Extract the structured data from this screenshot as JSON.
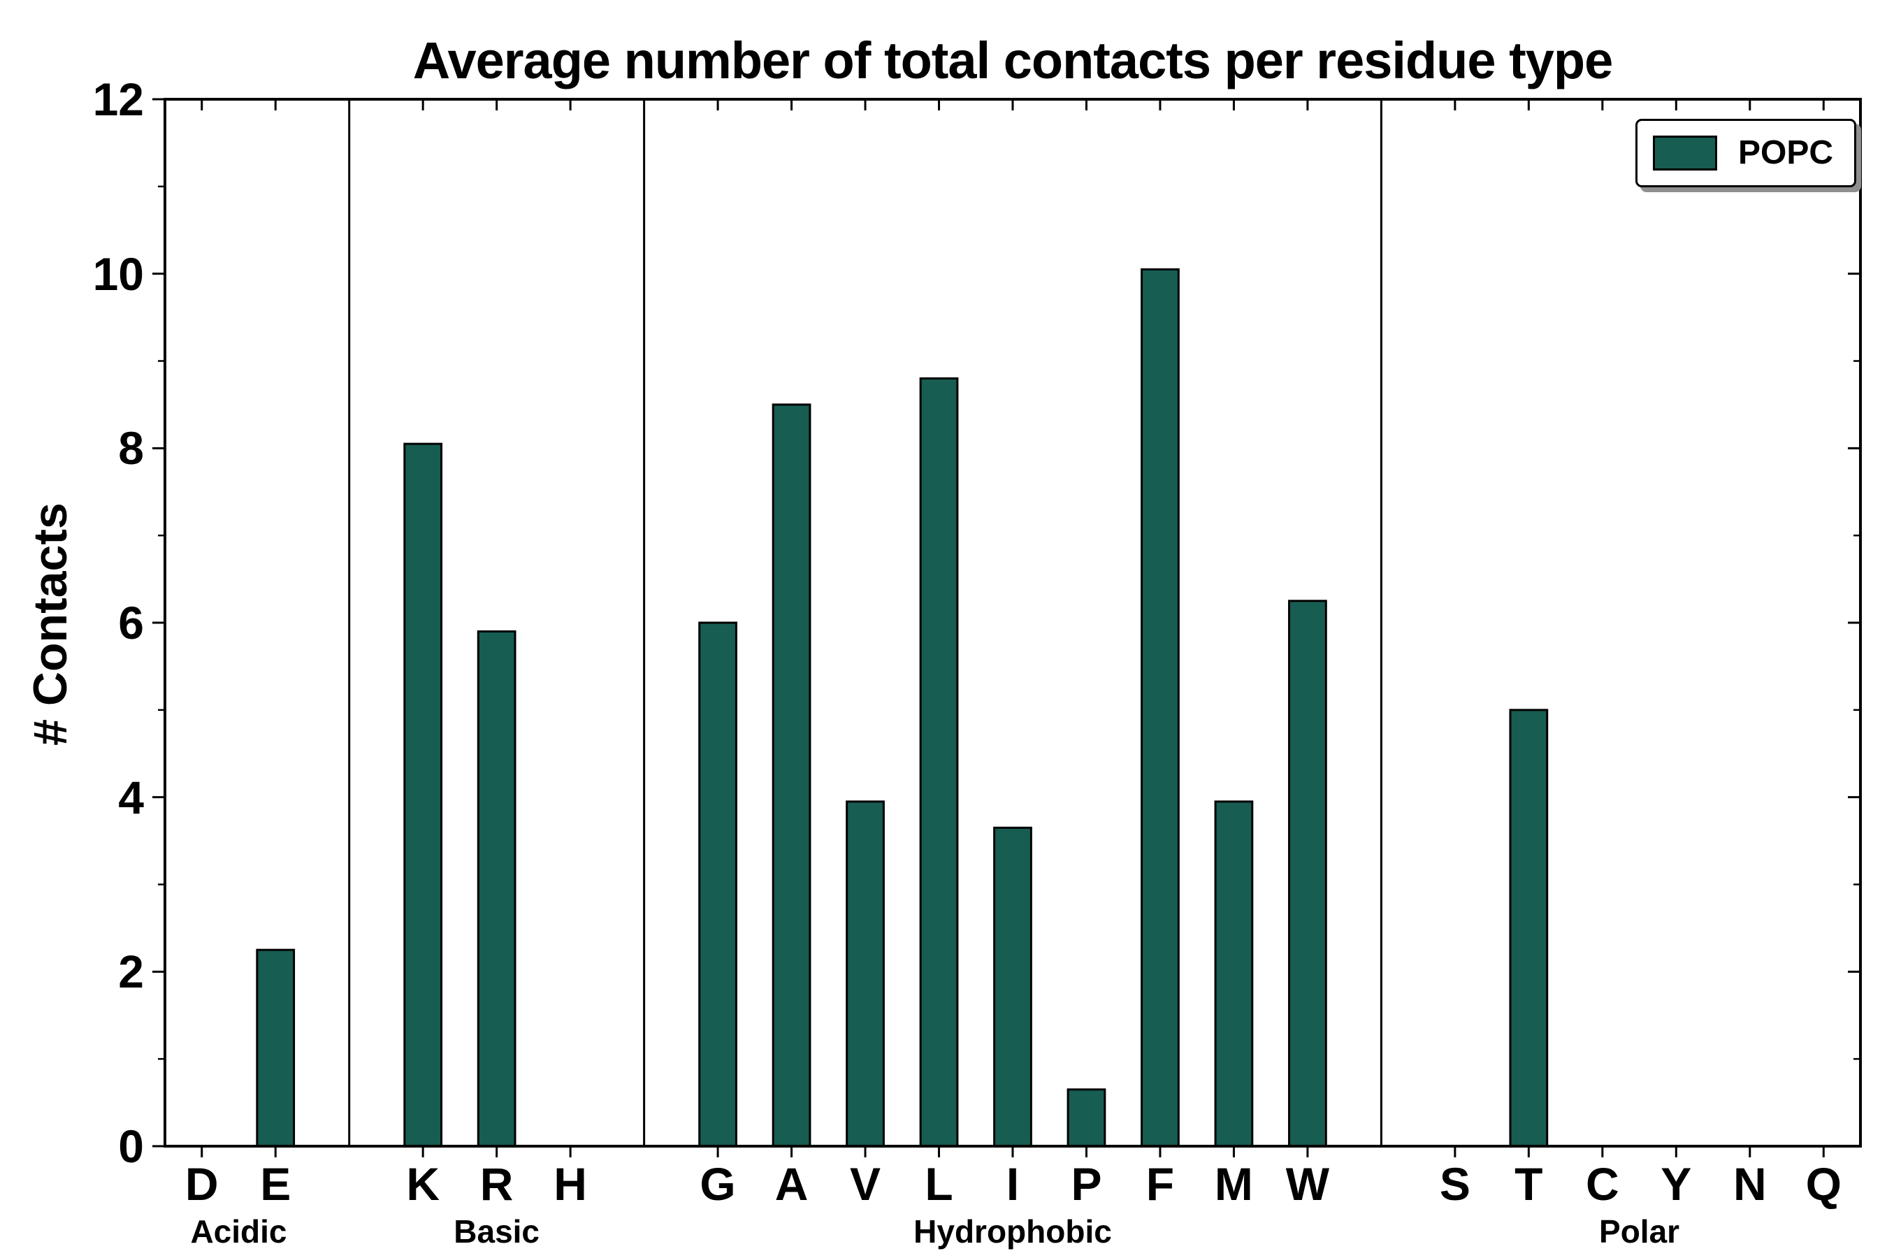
{
  "page": {
    "background": "#ffffff"
  },
  "chart_data": {
    "type": "bar",
    "title": "Average number of total contacts per residue type",
    "ylabel": "# Contacts",
    "xlabel": "",
    "ylim": [
      0,
      12
    ],
    "yticks": [
      0,
      2,
      4,
      6,
      8,
      10,
      12
    ],
    "grid": false,
    "bar_color": "#175D52",
    "bar_edge_color": "#000000",
    "legend": {
      "label": "POPC",
      "position": "upper right"
    },
    "groups": [
      {
        "label": "Acidic",
        "categories": [
          "D",
          "E"
        ],
        "values": [
          0.0,
          2.25
        ]
      },
      {
        "label": "Basic",
        "categories": [
          "K",
          "R",
          "H"
        ],
        "values": [
          8.05,
          5.9,
          0.0
        ]
      },
      {
        "label": "Hydrophobic",
        "categories": [
          "G",
          "A",
          "V",
          "L",
          "I",
          "P",
          "F",
          "M",
          "W"
        ],
        "values": [
          6.0,
          8.5,
          3.95,
          8.8,
          3.65,
          0.65,
          10.05,
          3.95,
          6.25
        ]
      },
      {
        "label": "Polar",
        "categories": [
          "S",
          "T",
          "C",
          "Y",
          "N",
          "Q"
        ],
        "values": [
          0.0,
          5.0,
          0.0,
          0.0,
          0.0,
          0.0
        ]
      }
    ]
  }
}
